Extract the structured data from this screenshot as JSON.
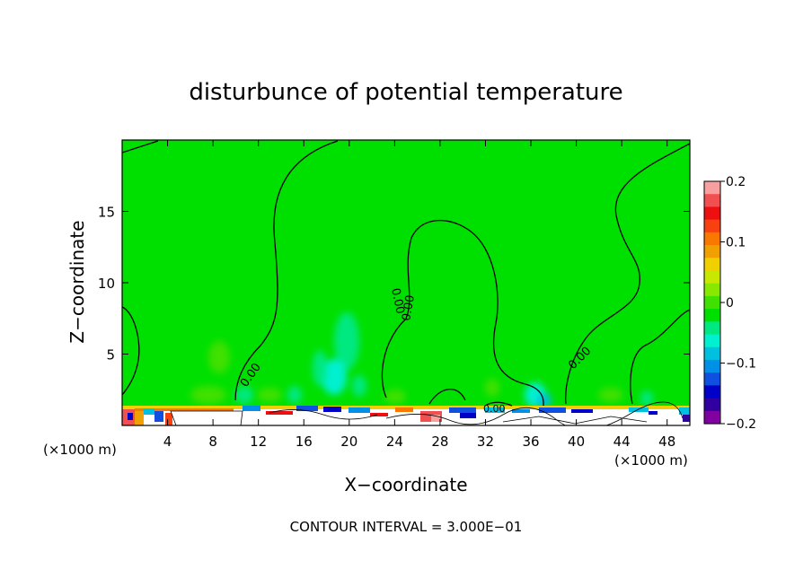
{
  "chart_data": {
    "type": "heatmap",
    "title": "disturbunce of potential temperature",
    "xlabel": "X−coordinate",
    "ylabel": "Z−coordinate",
    "x_unit": "(×1000 m)",
    "x_unit_right": "(×1000 m)",
    "footer": "CONTOUR INTERVAL = 3.000E−01",
    "xlim": [
      0,
      50
    ],
    "ylim": [
      0,
      20
    ],
    "x_ticks": [
      4,
      8,
      12,
      16,
      20,
      24,
      28,
      32,
      36,
      40,
      44,
      48
    ],
    "x_tick_labels": [
      "4",
      "8",
      "12",
      "16",
      "20",
      "24",
      "28",
      "32",
      "36",
      "40",
      "44",
      "48"
    ],
    "y_ticks": [
      5,
      10,
      15
    ],
    "y_tick_labels": [
      "5",
      "10",
      "15"
    ],
    "colorbar": {
      "range": [
        -0.2,
        0.2
      ],
      "tick_values": [
        0.2,
        0.1,
        0,
        -0.1,
        -0.2
      ],
      "tick_labels": [
        "0.2",
        "0.1",
        "0",
        "−0.1",
        "−0.2"
      ],
      "colors": [
        "#f8a0a0",
        "#f05050",
        "#ee1010",
        "#f84010",
        "#f87800",
        "#f0a000",
        "#f0d000",
        "#c8e800",
        "#88e800",
        "#40e000",
        "#00e000",
        "#00e880",
        "#00f0d0",
        "#00c0e0",
        "#0090e8",
        "#1050e0",
        "#0000c8",
        "#3000a0",
        "#8000a0"
      ]
    },
    "contour_labels": [
      "0.00",
      "0.00",
      "0.00",
      "0.00",
      "0.00"
    ],
    "contour_interval": 0.3,
    "background_value": 0.0,
    "features": [
      {
        "x": [
          18,
          21
        ],
        "z": [
          0.5,
          9
        ],
        "value": -0.03
      },
      {
        "x": [
          34,
          37
        ],
        "z": [
          0.5,
          3
        ],
        "value": -0.05
      },
      {
        "x": [
          8,
          9
        ],
        "z": [
          3,
          6
        ],
        "value": 0.03
      },
      {
        "x": [
          0,
          50
        ],
        "z": [
          0,
          1.2
        ],
        "value": "mixed −0.2 to 0.2"
      }
    ]
  }
}
